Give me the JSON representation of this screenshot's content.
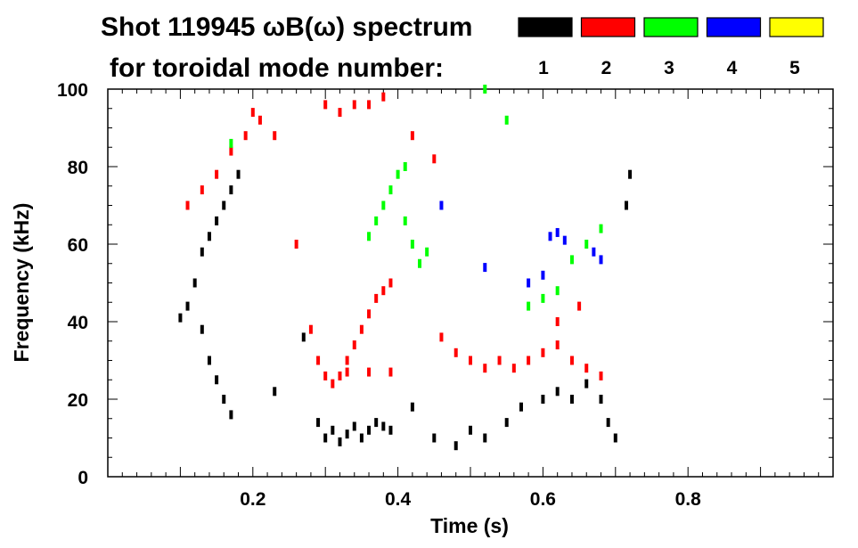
{
  "chart_data": {
    "type": "scatter",
    "title": "Shot 119945 ωB(ω) spectrum",
    "subtitle": "for toroidal mode number:",
    "xlabel": "Time (s)",
    "ylabel": "Frequency (kHz)",
    "xlim": [
      0.0,
      1.0
    ],
    "ylim": [
      0,
      100
    ],
    "x_ticks": [
      "0.2",
      "0.4",
      "0.6",
      "0.8"
    ],
    "y_ticks": [
      "0",
      "20",
      "40",
      "60",
      "80",
      "100"
    ],
    "grid": false,
    "legend_position": "top-right",
    "series": [
      {
        "name": "1",
        "color": "#000000",
        "points": [
          [
            0.1,
            41
          ],
          [
            0.11,
            44
          ],
          [
            0.12,
            50
          ],
          [
            0.13,
            58
          ],
          [
            0.14,
            62
          ],
          [
            0.15,
            66
          ],
          [
            0.16,
            70
          ],
          [
            0.17,
            74
          ],
          [
            0.18,
            78
          ],
          [
            0.13,
            38
          ],
          [
            0.14,
            30
          ],
          [
            0.15,
            25
          ],
          [
            0.16,
            20
          ],
          [
            0.17,
            16
          ],
          [
            0.23,
            22
          ],
          [
            0.27,
            36
          ],
          [
            0.29,
            14
          ],
          [
            0.3,
            10
          ],
          [
            0.31,
            12
          ],
          [
            0.32,
            9
          ],
          [
            0.33,
            11
          ],
          [
            0.34,
            13
          ],
          [
            0.35,
            10
          ],
          [
            0.36,
            12
          ],
          [
            0.37,
            14
          ],
          [
            0.38,
            13
          ],
          [
            0.39,
            12
          ],
          [
            0.42,
            18
          ],
          [
            0.45,
            10
          ],
          [
            0.48,
            8
          ],
          [
            0.5,
            12
          ],
          [
            0.52,
            10
          ],
          [
            0.55,
            14
          ],
          [
            0.57,
            18
          ],
          [
            0.6,
            20
          ],
          [
            0.62,
            22
          ],
          [
            0.64,
            20
          ],
          [
            0.66,
            24
          ],
          [
            0.68,
            20
          ],
          [
            0.69,
            14
          ],
          [
            0.7,
            10
          ],
          [
            0.715,
            70
          ],
          [
            0.72,
            78
          ]
        ]
      },
      {
        "name": "2",
        "color": "#ff0000",
        "points": [
          [
            0.11,
            70
          ],
          [
            0.13,
            74
          ],
          [
            0.15,
            78
          ],
          [
            0.17,
            84
          ],
          [
            0.19,
            88
          ],
          [
            0.2,
            94
          ],
          [
            0.21,
            92
          ],
          [
            0.23,
            88
          ],
          [
            0.26,
            60
          ],
          [
            0.28,
            38
          ],
          [
            0.29,
            30
          ],
          [
            0.3,
            26
          ],
          [
            0.31,
            24
          ],
          [
            0.32,
            26
          ],
          [
            0.33,
            30
          ],
          [
            0.34,
            34
          ],
          [
            0.35,
            38
          ],
          [
            0.36,
            42
          ],
          [
            0.37,
            46
          ],
          [
            0.38,
            48
          ],
          [
            0.39,
            50
          ],
          [
            0.33,
            27
          ],
          [
            0.36,
            27
          ],
          [
            0.39,
            27
          ],
          [
            0.3,
            96
          ],
          [
            0.32,
            94
          ],
          [
            0.34,
            96
          ],
          [
            0.36,
            96
          ],
          [
            0.38,
            98
          ],
          [
            0.42,
            88
          ],
          [
            0.45,
            82
          ],
          [
            0.46,
            36
          ],
          [
            0.48,
            32
          ],
          [
            0.5,
            30
          ],
          [
            0.52,
            28
          ],
          [
            0.54,
            30
          ],
          [
            0.56,
            28
          ],
          [
            0.58,
            30
          ],
          [
            0.6,
            32
          ],
          [
            0.62,
            34
          ],
          [
            0.64,
            30
          ],
          [
            0.66,
            28
          ],
          [
            0.68,
            26
          ],
          [
            0.62,
            40
          ],
          [
            0.65,
            44
          ]
        ]
      },
      {
        "name": "3",
        "color": "#00ff00",
        "points": [
          [
            0.17,
            86
          ],
          [
            0.36,
            62
          ],
          [
            0.37,
            66
          ],
          [
            0.38,
            70
          ],
          [
            0.39,
            74
          ],
          [
            0.4,
            78
          ],
          [
            0.41,
            80
          ],
          [
            0.41,
            66
          ],
          [
            0.42,
            60
          ],
          [
            0.43,
            55
          ],
          [
            0.44,
            58
          ],
          [
            0.52,
            100
          ],
          [
            0.55,
            92
          ],
          [
            0.58,
            44
          ],
          [
            0.6,
            46
          ],
          [
            0.62,
            48
          ],
          [
            0.64,
            56
          ],
          [
            0.66,
            60
          ],
          [
            0.68,
            64
          ]
        ]
      },
      {
        "name": "4",
        "color": "#0000ff",
        "points": [
          [
            0.46,
            70
          ],
          [
            0.52,
            54
          ],
          [
            0.58,
            50
          ],
          [
            0.6,
            52
          ],
          [
            0.61,
            62
          ],
          [
            0.62,
            63
          ],
          [
            0.63,
            61
          ],
          [
            0.67,
            58
          ],
          [
            0.68,
            56
          ]
        ]
      },
      {
        "name": "5",
        "color": "#ffff00",
        "points": []
      }
    ]
  }
}
